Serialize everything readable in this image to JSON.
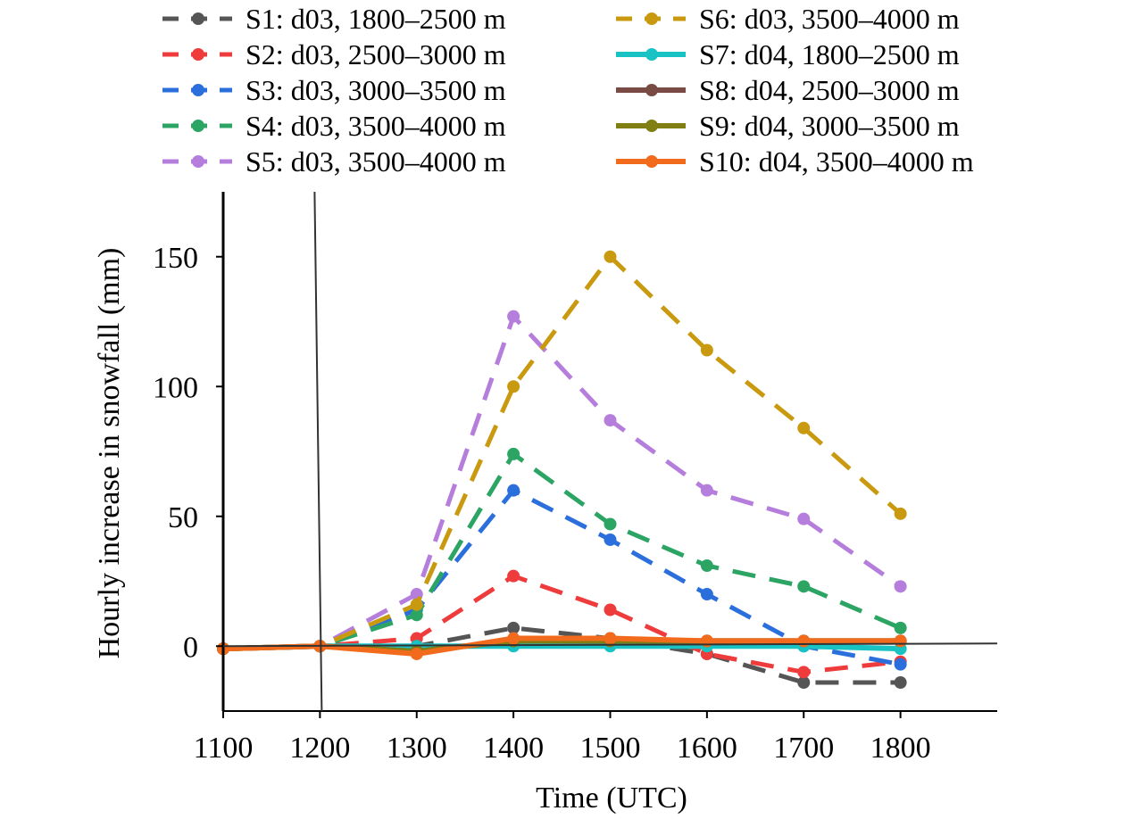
{
  "chart_data": {
    "type": "line",
    "title": "",
    "xlabel": "Time (UTC)",
    "ylabel": "Hourly increase in snowfall (mm)",
    "x": [
      1100,
      1200,
      1300,
      1400,
      1500,
      1600,
      1700,
      1800
    ],
    "xticks": [
      "1100",
      "1200",
      "1300",
      "1400",
      "1500",
      "1600",
      "1700",
      "1800"
    ],
    "yticks": [
      "0",
      "50",
      "100",
      "150"
    ],
    "xlim": [
      1100,
      1900
    ],
    "ylim": [
      -25,
      175
    ],
    "grid": false,
    "legend_position": "top",
    "series": [
      {
        "name": "S1: d03, 1800–2500 m",
        "color": "#555555",
        "dash": true,
        "values": [
          -1,
          0,
          0,
          7,
          3,
          -3,
          -14,
          -14
        ]
      },
      {
        "name": "S2: d03, 2500–3000 m",
        "color": "#ee3b3b",
        "dash": true,
        "values": [
          -1,
          0,
          3,
          27,
          14,
          -3,
          -10,
          -6
        ]
      },
      {
        "name": "S3: d03, 3000–3500 m",
        "color": "#2a6fdb",
        "dash": true,
        "values": [
          -1,
          0,
          14,
          60,
          41,
          20,
          0,
          -7
        ]
      },
      {
        "name": "S4: d03, 3500–4000 m",
        "color": "#2ca564",
        "dash": true,
        "values": [
          -1,
          0,
          12,
          74,
          47,
          31,
          23,
          7
        ]
      },
      {
        "name": "S5: d03, 3500–4000 m",
        "color": "#b57edc",
        "dash": true,
        "values": [
          -1,
          0,
          20,
          127,
          87,
          60,
          49,
          23
        ]
      },
      {
        "name": "S6: d03, 3500–4000 m",
        "color": "#c99a10",
        "dash": true,
        "values": [
          -1,
          0,
          16,
          100,
          150,
          114,
          84,
          51
        ]
      },
      {
        "name": "S7: d04, 1800–2500 m",
        "color": "#19c3c3",
        "dash": false,
        "values": [
          -1,
          0,
          0,
          0,
          0,
          0,
          0,
          -1
        ]
      },
      {
        "name": "S8: d04, 2500–3000 m",
        "color": "#7a4a45",
        "dash": false,
        "values": [
          -1,
          0,
          -2,
          2,
          2,
          2,
          2,
          2
        ]
      },
      {
        "name": "S9: d04, 3000–3500 m",
        "color": "#7f7f14",
        "dash": false,
        "values": [
          -1,
          0,
          -2,
          2,
          2,
          2,
          2,
          2
        ]
      },
      {
        "name": "S10: d04, 3500–4000 m",
        "color": "#f26b1d",
        "dash": false,
        "values": [
          -1,
          0,
          -3,
          3,
          3,
          2,
          2,
          2
        ]
      }
    ]
  }
}
